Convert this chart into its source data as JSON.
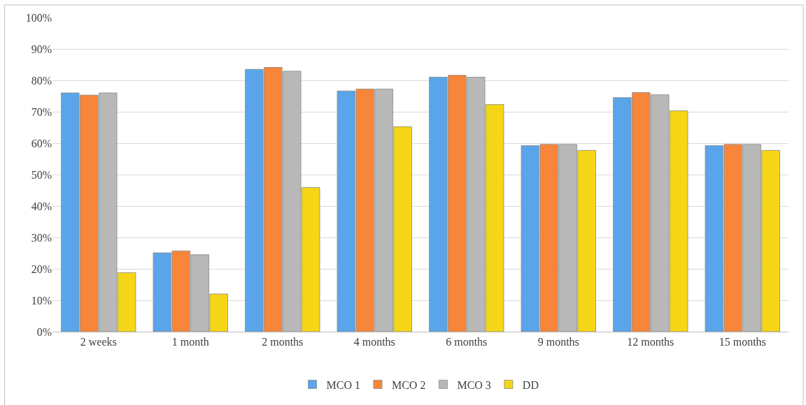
{
  "chart_data": {
    "type": "bar",
    "categories": [
      "2 weeks",
      "1 month",
      "2 months",
      "4 months",
      "6 months",
      "9 months",
      "12 months",
      "15 months"
    ],
    "series": [
      {
        "name": "MCO 1",
        "color": "#5aa5ea",
        "values": [
          76.0,
          25.1,
          83.5,
          76.6,
          81.0,
          59.2,
          74.5,
          59.2
        ]
      },
      {
        "name": "MCO 2",
        "color": "#f7863a",
        "values": [
          75.3,
          25.7,
          84.1,
          77.2,
          81.6,
          59.6,
          76.1,
          59.6
        ]
      },
      {
        "name": "MCO 3",
        "color": "#b8b8b8",
        "values": [
          76.0,
          24.5,
          82.9,
          77.2,
          81.0,
          59.6,
          75.4,
          59.6
        ]
      },
      {
        "name": "DD",
        "color": "#f5d617",
        "values": [
          18.8,
          12.0,
          45.9,
          65.2,
          72.3,
          57.7,
          70.3,
          57.7
        ]
      }
    ],
    "ylim": [
      0,
      100
    ],
    "yticks": [
      {
        "value": 0,
        "label": "0%"
      },
      {
        "value": 10,
        "label": "10%"
      },
      {
        "value": 20,
        "label": "20%"
      },
      {
        "value": 30,
        "label": "30%"
      },
      {
        "value": 40,
        "label": "40%"
      },
      {
        "value": 50,
        "label": "50%"
      },
      {
        "value": 60,
        "label": "60%"
      },
      {
        "value": 70,
        "label": "70%"
      },
      {
        "value": 80,
        "label": "80%"
      },
      {
        "value": 90,
        "label": "90%"
      },
      {
        "value": 100,
        "label": "100%"
      }
    ],
    "grid": "y",
    "legend": "bottom"
  }
}
